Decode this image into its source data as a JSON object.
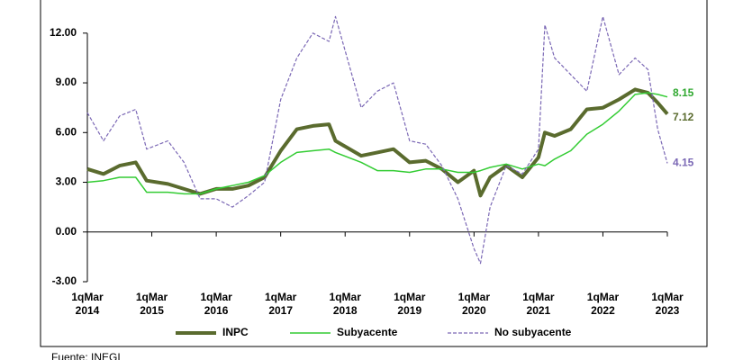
{
  "chart_data": {
    "type": "line",
    "x": [
      2014.0,
      2014.25,
      2014.5,
      2014.75,
      2014.92,
      2015.25,
      2015.5,
      2015.75,
      2016.0,
      2016.25,
      2016.5,
      2016.75,
      2017.0,
      2017.25,
      2017.5,
      2017.75,
      2017.85,
      2018.25,
      2018.5,
      2018.75,
      2019.0,
      2019.25,
      2019.5,
      2019.75,
      2020.0,
      2020.1,
      2020.25,
      2020.5,
      2020.75,
      2021.0,
      2021.1,
      2021.25,
      2021.5,
      2021.75,
      2022.0,
      2022.25,
      2022.5,
      2022.7,
      2022.85,
      2023.0
    ],
    "series": [
      {
        "name": "INPC",
        "color": "#5a6b2e",
        "values": [
          3.8,
          3.5,
          4.0,
          4.2,
          3.1,
          2.9,
          2.6,
          2.3,
          2.6,
          2.6,
          2.8,
          3.3,
          4.9,
          6.2,
          6.4,
          6.5,
          5.5,
          4.6,
          4.8,
          5.0,
          4.2,
          4.3,
          3.8,
          3.0,
          3.7,
          2.2,
          3.3,
          4.0,
          3.3,
          4.5,
          6.0,
          5.8,
          6.2,
          7.4,
          7.5,
          8.0,
          8.6,
          8.4,
          7.8,
          7.12
        ]
      },
      {
        "name": "Subyacente",
        "color": "#33cc33",
        "values": [
          3.0,
          3.1,
          3.3,
          3.3,
          2.4,
          2.4,
          2.3,
          2.3,
          2.6,
          2.8,
          3.0,
          3.4,
          4.2,
          4.8,
          4.9,
          5.0,
          4.8,
          4.2,
          3.7,
          3.7,
          3.6,
          3.8,
          3.8,
          3.6,
          3.6,
          3.7,
          3.9,
          4.1,
          3.8,
          4.1,
          4.0,
          4.4,
          4.9,
          5.9,
          6.5,
          7.3,
          8.3,
          8.4,
          8.3,
          8.15
        ]
      },
      {
        "name": "No subyacente",
        "color": "#7b68b5",
        "values": [
          7.2,
          5.5,
          7.0,
          7.4,
          5.0,
          5.5,
          4.2,
          2.0,
          2.0,
          1.5,
          2.2,
          3.0,
          8.0,
          10.5,
          12.0,
          11.5,
          13.0,
          7.5,
          8.5,
          9.0,
          5.5,
          5.3,
          4.0,
          2.0,
          -1.0,
          -1.9,
          1.5,
          4.0,
          3.5,
          5.0,
          12.5,
          10.5,
          9.5,
          8.5,
          13.0,
          9.5,
          10.5,
          9.8,
          6.2,
          4.15
        ]
      }
    ],
    "xlim": [
      2014,
      2023
    ],
    "xticks": [
      {
        "value": 2014,
        "label": "1qMar 2014"
      },
      {
        "value": 2015,
        "label": "1qMar 2015"
      },
      {
        "value": 2016,
        "label": "1qMar 2016"
      },
      {
        "value": 2017,
        "label": "1qMar 2017"
      },
      {
        "value": 2018,
        "label": "1qMar 2018"
      },
      {
        "value": 2019,
        "label": "1qMar 2019"
      },
      {
        "value": 2020,
        "label": "1qMar 2020"
      },
      {
        "value": 2021,
        "label": "1qMar 2021"
      },
      {
        "value": 2022,
        "label": "1qMar 2022"
      },
      {
        "value": 2023,
        "label": "1qMar 2023"
      }
    ],
    "ylim": [
      -3,
      14
    ],
    "yticks": [
      {
        "value": -3,
        "label": "-3.00"
      },
      {
        "value": 0,
        "label": "0.00"
      },
      {
        "value": 3,
        "label": "3.00"
      },
      {
        "value": 6,
        "label": "6.00"
      },
      {
        "value": 9,
        "label": "9.00"
      },
      {
        "value": 12,
        "label": "12.00"
      }
    ],
    "source": "Fuente: INEGI"
  }
}
